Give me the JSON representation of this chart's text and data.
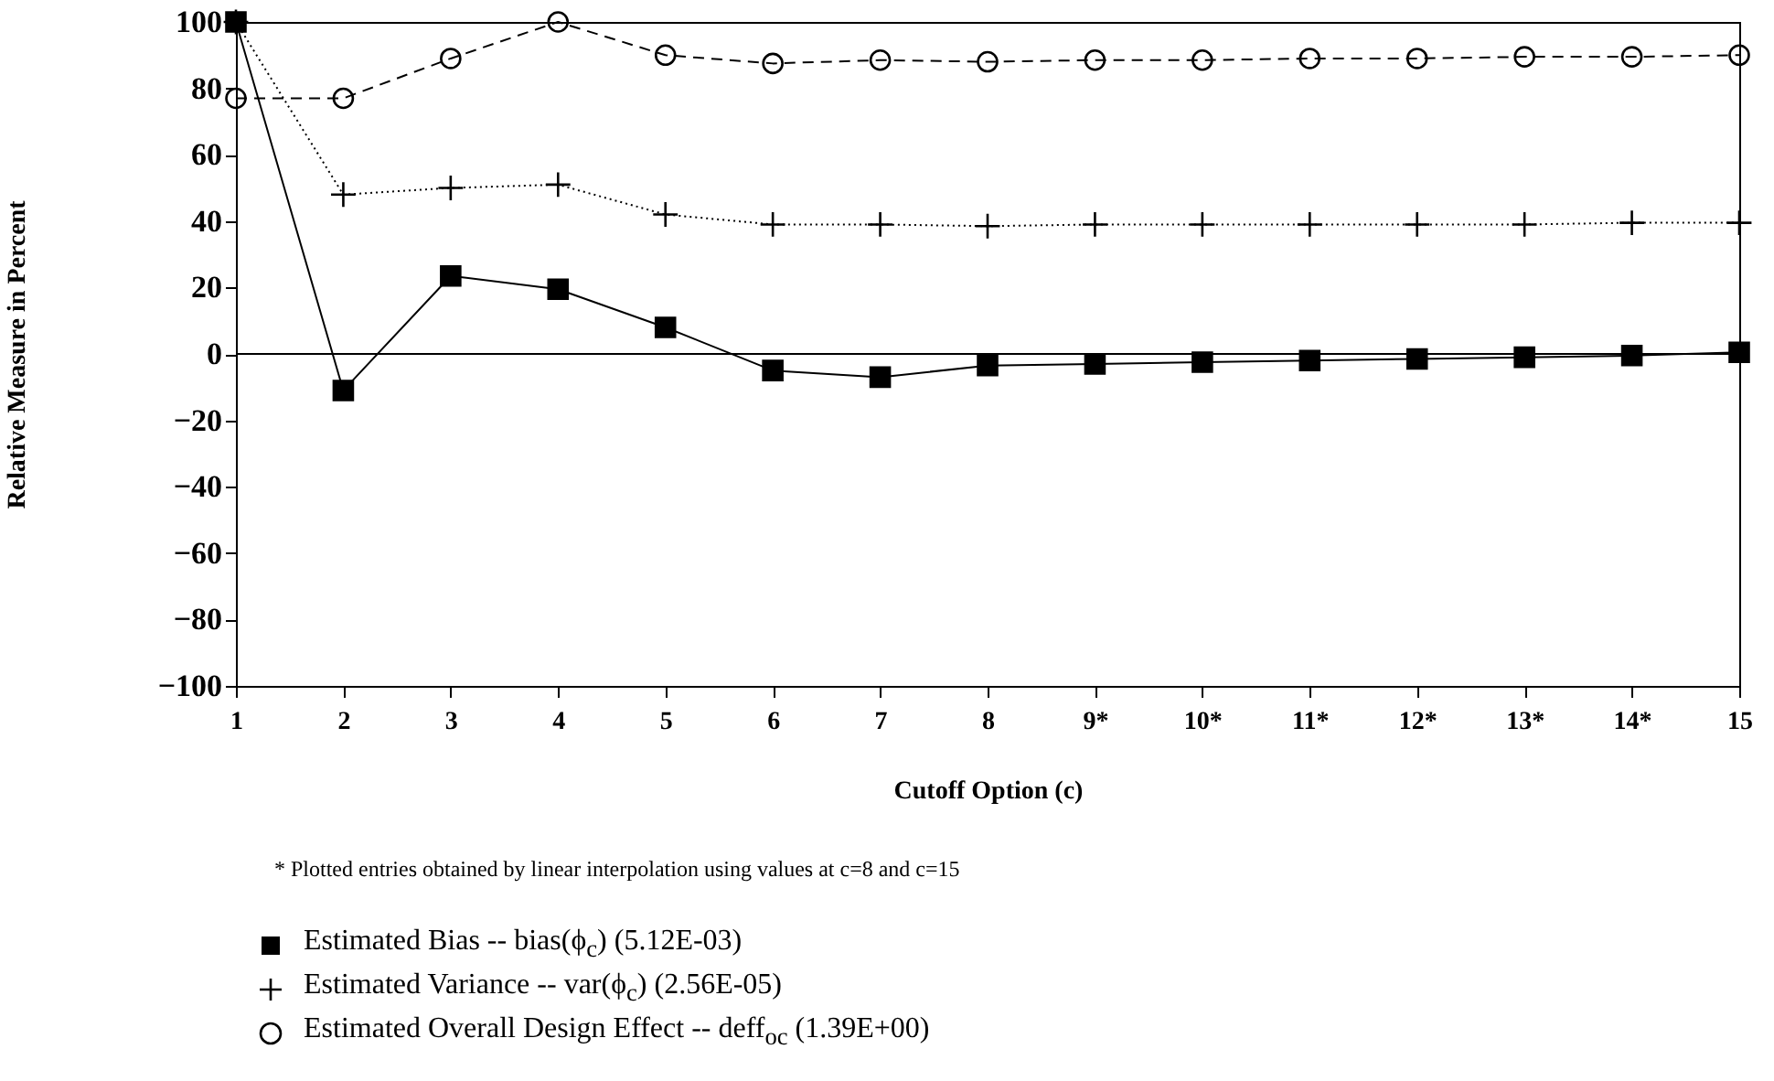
{
  "chart_data": {
    "type": "line",
    "xlabel": "Cutoff Option (c)",
    "ylabel": "Relative Measure in Percent",
    "categories": [
      "1",
      "2",
      "3",
      "4",
      "5",
      "6",
      "7",
      "8",
      "9*",
      "10*",
      "11*",
      "12*",
      "13*",
      "14*",
      "15"
    ],
    "series": [
      {
        "name": "Estimated Bias -- bias(ϕ$_{c}$) (5.12E-03)",
        "color": "#000000",
        "marker": "square",
        "line_style": "solid",
        "values": [
          100,
          -11,
          23.5,
          19.5,
          8,
          -5,
          -7,
          -3.5,
          -3,
          -2.5,
          -2,
          -1.5,
          -1,
          -0.5,
          0.5
        ]
      },
      {
        "name": "Estimated Variance -- var(ϕ$_{c}$) (2.56E-05)",
        "color": "#000000",
        "marker": "cross",
        "line_style": "dotted",
        "values": [
          100,
          48,
          50,
          51,
          42,
          39,
          39,
          38.5,
          39,
          39,
          39,
          39,
          39,
          39.5,
          39.5
        ]
      },
      {
        "name": "Estimated Overall Design Effect -- deff$_{oc}$ (1.39E+00)",
        "color": "#000000",
        "marker": "circle",
        "line_style": "dashed",
        "values": [
          77,
          77,
          89,
          100,
          90,
          87.5,
          88.5,
          88,
          88.5,
          88.5,
          89,
          89,
          89.5,
          89.5,
          90
        ]
      }
    ],
    "ylim": [
      -100,
      100
    ],
    "yticks": [
      -100,
      -80,
      -60,
      -40,
      -20,
      0,
      20,
      40,
      60,
      80,
      100
    ],
    "ref_lines": [
      {
        "axis": "y",
        "value": 0,
        "color": "#000000"
      }
    ],
    "annotations": [
      "* Plotted entries obtained by linear interpolation using values at c=8 and c=15"
    ],
    "legend": "bottom",
    "grid": false
  }
}
